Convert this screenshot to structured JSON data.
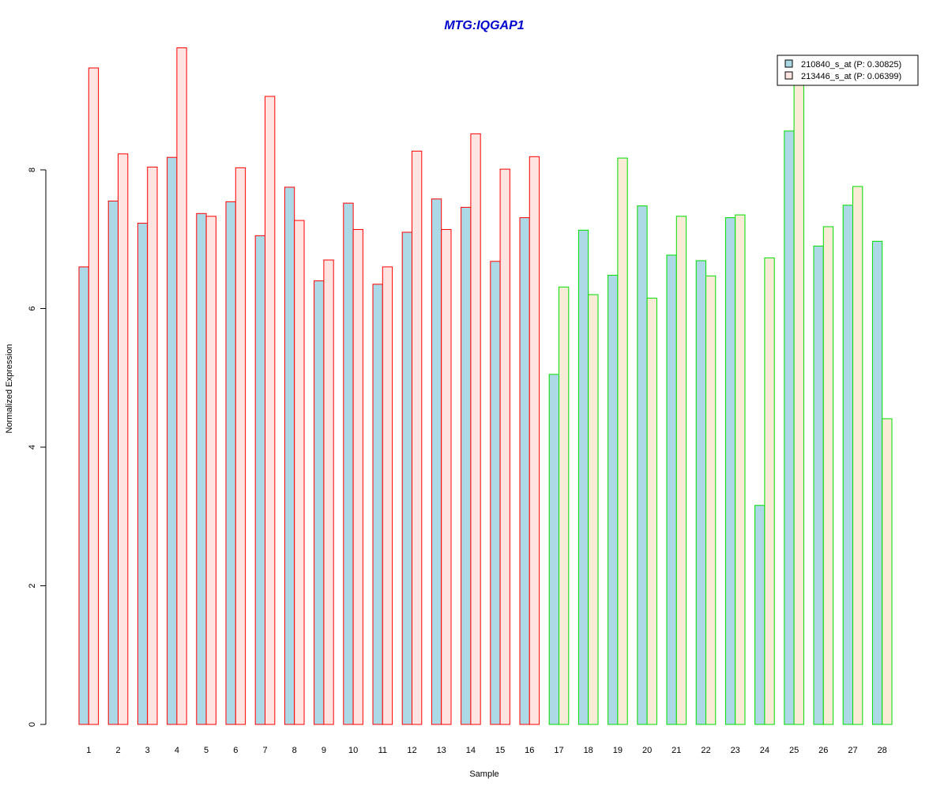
{
  "colors": {
    "title": "#0000cc",
    "series1_fill": "#add8e6",
    "series2_fill_group1": "#ffe4e1",
    "series2_fill_group2": "#faebd7",
    "group1_border": "#ff0000",
    "group2_border": "#00dd00",
    "axis": "#000000"
  },
  "chart_data": {
    "type": "bar",
    "title": "MTG:IQGAP1",
    "xlabel": "Sample",
    "ylabel": "Normalized Expression",
    "ylim": [
      0,
      9.8
    ],
    "yticks": [
      "0",
      "2",
      "4",
      "6",
      "8"
    ],
    "ytick_values": [
      0,
      2,
      4,
      6,
      8
    ],
    "grid": false,
    "legend_position": "top-right",
    "categories": [
      "1",
      "2",
      "3",
      "4",
      "5",
      "6",
      "7",
      "8",
      "9",
      "10",
      "11",
      "12",
      "13",
      "14",
      "15",
      "16",
      "17",
      "18",
      "19",
      "20",
      "21",
      "22",
      "23",
      "24",
      "25",
      "26",
      "27",
      "28"
    ],
    "group_border_by_sample": [
      "group1",
      "group1",
      "group1",
      "group1",
      "group1",
      "group1",
      "group1",
      "group1",
      "group1",
      "group1",
      "group1",
      "group1",
      "group1",
      "group1",
      "group1",
      "group1",
      "group2",
      "group2",
      "group2",
      "group2",
      "group2",
      "group2",
      "group2",
      "group2",
      "group2",
      "group2",
      "group2",
      "group2"
    ],
    "series": [
      {
        "name": "210840_s_at (P: 0.30825)",
        "values": [
          6.6,
          7.55,
          7.23,
          8.18,
          7.37,
          7.54,
          7.05,
          7.75,
          6.4,
          7.52,
          6.35,
          7.1,
          7.58,
          7.46,
          6.68,
          7.31,
          5.05,
          7.13,
          6.48,
          7.48,
          6.77,
          6.69,
          7.31,
          3.16,
          8.56,
          6.9,
          7.49,
          6.97
        ]
      },
      {
        "name": "213446_s_at (P: 0.06399)",
        "values": [
          9.47,
          8.23,
          8.04,
          9.76,
          7.33,
          8.03,
          9.06,
          7.27,
          6.7,
          7.14,
          6.6,
          8.27,
          7.14,
          8.52,
          8.01,
          8.19,
          6.31,
          6.2,
          8.17,
          6.15,
          7.33,
          6.47,
          7.35,
          6.73,
          9.4,
          7.18,
          7.76,
          4.41
        ]
      }
    ]
  }
}
